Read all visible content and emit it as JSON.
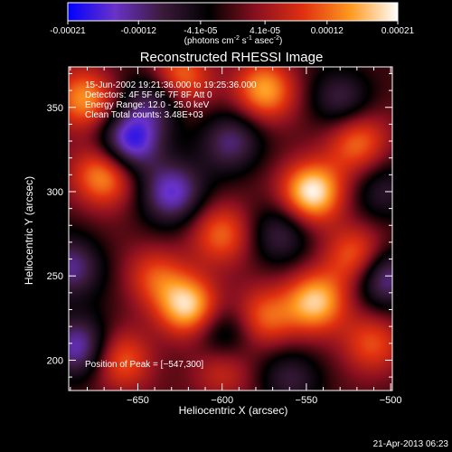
{
  "colorbar": {
    "ticks": [
      "-0.00021",
      "-0.00012",
      "-4.1e-05",
      "4.1e-05",
      "0.00012",
      "0.00021"
    ],
    "tick_values": [
      -0.00021,
      -0.00012,
      -4.1e-05,
      4.1e-05,
      0.00012,
      0.00021
    ],
    "range": [
      -0.00021,
      0.00021
    ],
    "unit_label": "(photons cm",
    "unit_exp1": "-2",
    "unit_mid": " s",
    "unit_exp2": "-1",
    "unit_end": " asec",
    "unit_exp3": "-2",
    "unit_close": ")",
    "colors": [
      "#0000ff",
      "#6a32c8",
      "#3a1a3a",
      "#000000",
      "#8a1020",
      "#e03010",
      "#ff9a20",
      "#ffffff"
    ]
  },
  "chart_data": {
    "type": "heatmap",
    "title": "Reconstructed RHESSI Image",
    "xlabel": "Heliocentric X (arcsec)",
    "ylabel": "Heliocentric Y (arcsec)",
    "xlim": [
      -691,
      -499
    ],
    "ylim": [
      182,
      374
    ],
    "x_ticks": [
      -650,
      -600,
      -550,
      -500
    ],
    "x_tick_labels": [
      "−650",
      "−600",
      "−550",
      "−500"
    ],
    "y_ticks": [
      200,
      250,
      300,
      350
    ],
    "y_tick_labels": [
      "200",
      "250",
      "300",
      "350"
    ],
    "annotations": [
      "15-Jun-2002 19:21:36.000 to 19:25:36.000",
      "Detectors: 4F 5F 6F 7F 8F  Att 0",
      "Energy Range: 12.0 - 25.0 keV",
      "Clean    Total counts: 3.48E+03"
    ],
    "peak_label": "Position of Peak = [−547,300]",
    "peak": [
      -547,
      300
    ],
    "blobs": [
      {
        "x": -547,
        "y": 300,
        "v": 1.0
      },
      {
        "x": -670,
        "y": 310,
        "v": 0.75
      },
      {
        "x": -682,
        "y": 355,
        "v": 0.7
      },
      {
        "x": -625,
        "y": 368,
        "v": 0.65
      },
      {
        "x": -575,
        "y": 360,
        "v": 0.75
      },
      {
        "x": -520,
        "y": 330,
        "v": 0.6
      },
      {
        "x": -600,
        "y": 275,
        "v": 0.55
      },
      {
        "x": -640,
        "y": 250,
        "v": 0.45
      },
      {
        "x": -620,
        "y": 232,
        "v": 0.9
      },
      {
        "x": -545,
        "y": 235,
        "v": 0.85
      },
      {
        "x": -512,
        "y": 210,
        "v": 0.5
      },
      {
        "x": -660,
        "y": 200,
        "v": 0.55
      },
      {
        "x": -600,
        "y": 195,
        "v": 0.4
      },
      {
        "x": -520,
        "y": 262,
        "v": 0.65
      },
      {
        "x": -575,
        "y": 225,
        "v": 0.55
      },
      {
        "x": -655,
        "y": 330,
        "v": -0.9
      },
      {
        "x": -630,
        "y": 300,
        "v": -0.75
      },
      {
        "x": -690,
        "y": 255,
        "v": -0.6
      },
      {
        "x": -595,
        "y": 330,
        "v": -0.55
      },
      {
        "x": -685,
        "y": 208,
        "v": -0.7
      },
      {
        "x": -600,
        "y": 215,
        "v": -0.45
      },
      {
        "x": -565,
        "y": 275,
        "v": -0.45
      },
      {
        "x": -505,
        "y": 250,
        "v": -0.7
      },
      {
        "x": -530,
        "y": 355,
        "v": -0.45
      },
      {
        "x": -640,
        "y": 355,
        "v": -0.5
      },
      {
        "x": -505,
        "y": 300,
        "v": -0.35
      },
      {
        "x": -560,
        "y": 190,
        "v": -0.4
      }
    ]
  },
  "footer": {
    "date": "21-Apr-2013 06:23"
  }
}
